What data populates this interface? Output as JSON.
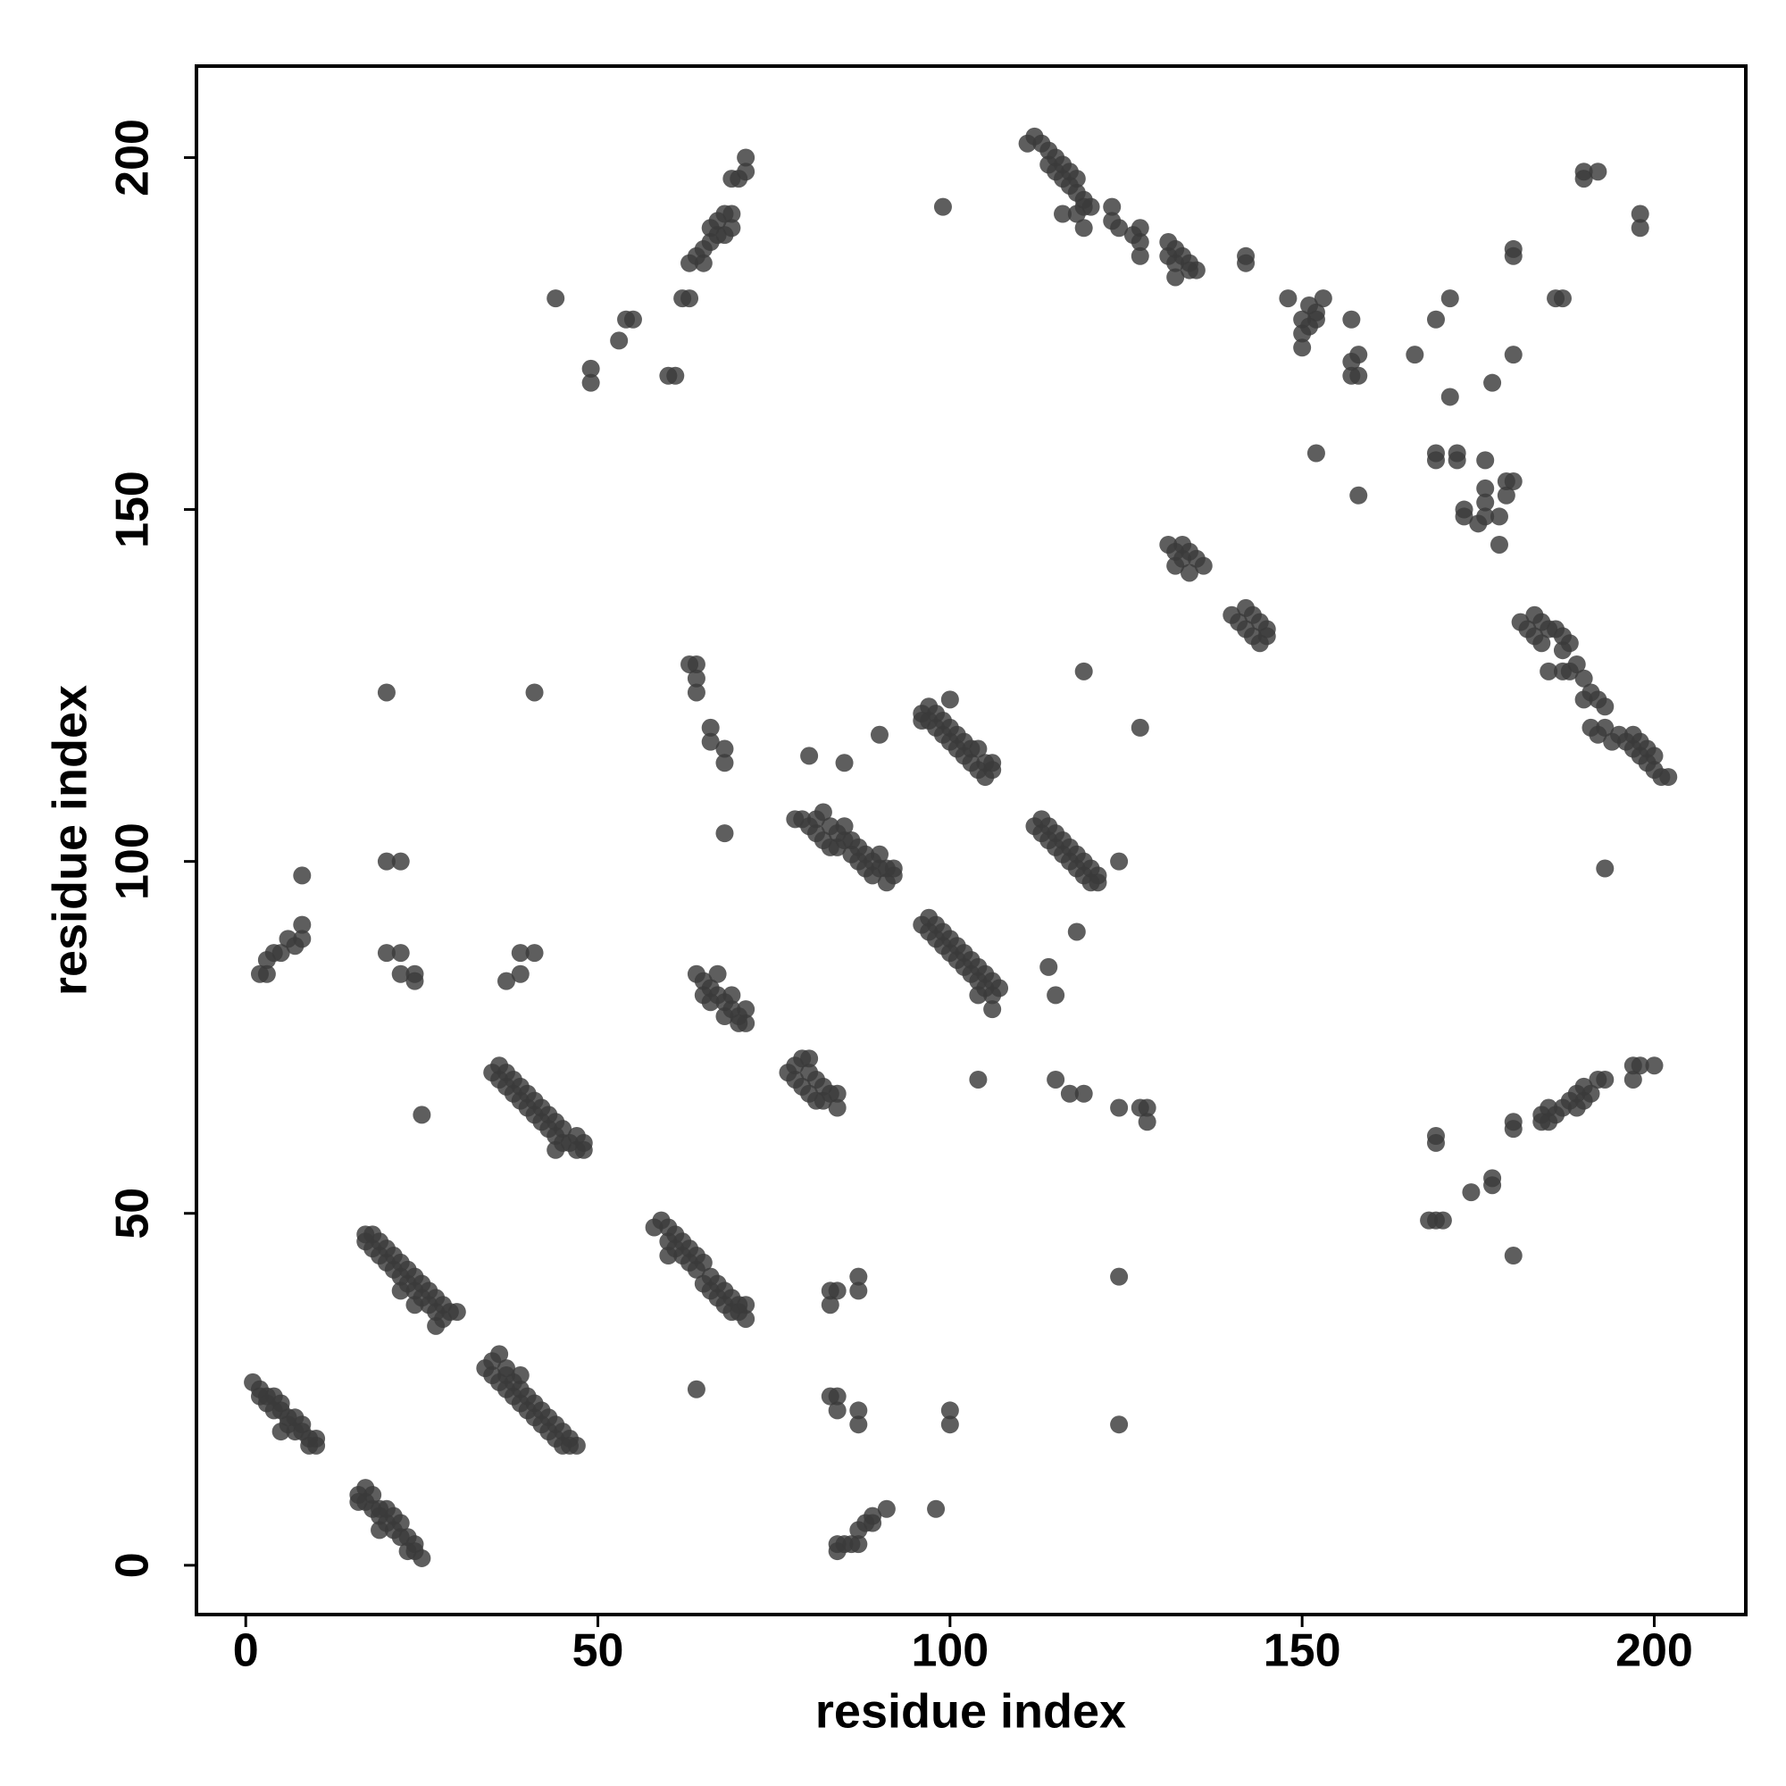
{
  "chart_data": {
    "type": "scatter",
    "x_label": "residue index",
    "y_label": "residue index",
    "color": "#3a3a3a",
    "xlim": [
      -7,
      213
    ],
    "ylim": [
      -7,
      213
    ],
    "xticks": [
      0,
      50,
      100,
      150,
      200
    ],
    "yticks": [
      0,
      50,
      100,
      150,
      200
    ],
    "x": [
      1,
      2,
      3,
      3,
      4,
      5,
      5,
      6,
      6,
      7,
      8,
      8,
      9,
      10,
      10,
      5,
      7,
      9,
      2,
      4,
      16,
      17,
      17,
      18,
      18,
      19,
      19,
      20,
      20,
      21,
      21,
      22,
      22,
      23,
      23,
      24,
      24,
      25,
      19,
      16,
      17,
      17,
      18,
      18,
      19,
      19,
      20,
      20,
      21,
      21,
      22,
      22,
      23,
      23,
      24,
      24,
      25,
      25,
      26,
      26,
      27,
      27,
      28,
      28,
      29,
      30,
      27,
      22,
      24,
      34,
      35,
      35,
      36,
      36,
      37,
      37,
      38,
      38,
      39,
      39,
      40,
      40,
      41,
      41,
      42,
      42,
      43,
      43,
      44,
      44,
      45,
      45,
      46,
      46,
      47,
      37,
      39,
      35,
      36,
      36,
      37,
      37,
      38,
      38,
      39,
      39,
      40,
      40,
      41,
      41,
      42,
      42,
      43,
      43,
      44,
      44,
      45,
      45,
      46,
      47,
      47,
      48,
      44,
      58,
      59,
      60,
      60,
      60,
      61,
      61,
      62,
      62,
      63,
      63,
      64,
      64,
      65,
      65,
      66,
      66,
      67,
      67,
      68,
      68,
      69,
      69,
      70,
      70,
      71,
      71,
      64,
      64,
      65,
      65,
      66,
      66,
      67,
      67,
      68,
      68,
      69,
      69,
      70,
      70,
      71,
      71,
      77,
      78,
      78,
      79,
      79,
      80,
      80,
      81,
      81,
      82,
      82,
      83,
      84,
      84,
      80,
      78,
      79,
      80,
      81,
      81,
      82,
      82,
      83,
      83,
      84,
      84,
      85,
      85,
      86,
      86,
      87,
      87,
      88,
      88,
      89,
      89,
      90,
      90,
      91,
      91,
      92,
      92,
      96,
      97,
      97,
      98,
      98,
      99,
      99,
      100,
      100,
      100,
      101,
      101,
      102,
      102,
      103,
      103,
      104,
      104,
      105,
      105,
      106,
      106,
      96,
      96,
      97,
      97,
      98,
      98,
      99,
      99,
      100,
      100,
      101,
      101,
      102,
      102,
      103,
      103,
      104,
      104,
      105,
      105,
      106,
      106,
      107,
      106,
      104,
      112,
      113,
      113,
      114,
      114,
      115,
      115,
      116,
      116,
      117,
      117,
      118,
      118,
      119,
      119,
      120,
      120,
      121,
      121,
      124,
      111,
      112,
      113,
      114,
      114,
      115,
      115,
      116,
      116,
      117,
      117,
      118,
      118,
      119,
      119,
      120,
      116,
      118,
      119,
      123,
      123,
      124,
      126,
      127,
      127,
      127,
      131,
      131,
      132,
      132,
      133,
      134,
      134,
      132,
      135,
      142,
      142,
      148,
      150,
      150,
      151,
      151,
      152,
      152,
      153,
      150,
      157,
      157,
      158,
      158,
      157,
      131,
      132,
      132,
      133,
      133,
      134,
      134,
      135,
      136,
      140,
      141,
      142,
      142,
      143,
      143,
      144,
      144,
      145,
      145,
      181,
      182,
      183,
      183,
      184,
      184,
      185,
      186,
      187,
      187,
      188,
      188,
      189,
      190,
      190,
      191,
      191,
      192,
      192,
      193,
      193,
      194,
      195,
      196,
      197,
      197,
      198,
      198,
      199,
      199,
      200,
      200,
      201,
      202,
      185,
      187,
      168,
      169,
      170,
      169,
      169,
      174,
      177,
      177,
      180,
      180,
      180,
      184,
      184,
      185,
      186,
      187,
      188,
      189,
      189,
      190,
      190,
      191,
      192,
      193,
      197,
      197,
      198,
      200,
      185,
      44,
      49,
      49,
      53,
      54,
      55,
      60,
      61,
      62,
      63,
      63,
      64,
      65,
      65,
      66,
      66,
      67,
      67,
      68,
      68,
      69,
      69,
      69,
      70,
      71,
      71,
      99,
      166,
      169,
      171,
      171,
      169,
      169,
      172,
      172,
      173,
      173,
      175,
      176,
      176,
      176,
      176,
      177,
      178,
      178,
      179,
      179,
      180,
      180,
      180,
      180,
      186,
      187,
      190,
      190,
      192,
      198,
      198,
      152,
      158,
      193,
      20,
      41,
      63,
      64,
      64,
      64,
      66,
      66,
      68,
      68,
      68,
      80,
      85,
      90,
      119,
      127,
      114,
      115,
      118,
      104,
      115,
      117,
      119,
      124,
      127,
      128,
      128,
      2,
      3,
      3,
      4,
      5,
      6,
      7,
      8,
      8,
      8,
      20,
      22,
      20,
      22,
      22,
      24,
      24,
      37,
      39,
      39,
      41,
      25,
      48,
      83,
      83,
      84,
      87,
      87,
      83,
      84,
      84,
      87,
      87,
      100,
      100,
      124,
      124,
      84,
      84,
      85,
      86,
      87,
      87,
      88,
      89,
      89,
      91,
      98
    ],
    "values": [
      26,
      25,
      24,
      23,
      24,
      23,
      22,
      21,
      20,
      21,
      20,
      19,
      18,
      18,
      17,
      19,
      19,
      17,
      24,
      22,
      10,
      11,
      9,
      10,
      8,
      8,
      7,
      8,
      6,
      7,
      5,
      6,
      4,
      4,
      2,
      3,
      2,
      1,
      5,
      9,
      46,
      47,
      45,
      47,
      44,
      46,
      43,
      45,
      42,
      44,
      41,
      43,
      40,
      42,
      39,
      41,
      38,
      40,
      37,
      39,
      36,
      38,
      35,
      37,
      36,
      36,
      34,
      39,
      37,
      28,
      29,
      27,
      30,
      26,
      27,
      25,
      26,
      24,
      25,
      23,
      24,
      22,
      23,
      21,
      22,
      20,
      21,
      19,
      20,
      18,
      19,
      17,
      18,
      17,
      17,
      28,
      27,
      70,
      71,
      69,
      70,
      68,
      69,
      67,
      68,
      66,
      67,
      65,
      66,
      64,
      65,
      63,
      64,
      62,
      63,
      61,
      62,
      60,
      60,
      61,
      59,
      60,
      59,
      48,
      49,
      48,
      46,
      44,
      45,
      47,
      44,
      46,
      43,
      45,
      42,
      44,
      40,
      43,
      41,
      39,
      40,
      38,
      39,
      37,
      38,
      36,
      36,
      37,
      35,
      37,
      25,
      84,
      83,
      81,
      82,
      80,
      84,
      81,
      80,
      78,
      81,
      79,
      78,
      77,
      79,
      77,
      70,
      71,
      69,
      72,
      68,
      70,
      67,
      69,
      66,
      68,
      66,
      67,
      67,
      65,
      72,
      106,
      106,
      105,
      104,
      106,
      103,
      107,
      102,
      105,
      104,
      102,
      103,
      105,
      101,
      103,
      100,
      102,
      101,
      99,
      100,
      98,
      99,
      101,
      97,
      99,
      98,
      99,
      121,
      120,
      122,
      119,
      121,
      118,
      120,
      117,
      119,
      123,
      116,
      118,
      115,
      117,
      114,
      116,
      113,
      116,
      114,
      112,
      113,
      114,
      120,
      91,
      92,
      90,
      89,
      91,
      88,
      90,
      87,
      89,
      86,
      88,
      85,
      87,
      84,
      86,
      83,
      85,
      82,
      84,
      81,
      83,
      82,
      79,
      81,
      105,
      106,
      104,
      103,
      105,
      102,
      104,
      101,
      103,
      100,
      102,
      99,
      101,
      98,
      100,
      97,
      99,
      98,
      97,
      100,
      202,
      203,
      202,
      201,
      199,
      200,
      198,
      199,
      197,
      196,
      198,
      195,
      197,
      194,
      193,
      193,
      192,
      192,
      190,
      193,
      191,
      190,
      189,
      190,
      188,
      186,
      188,
      186,
      187,
      185,
      186,
      184,
      185,
      183,
      184,
      186,
      185,
      180,
      177,
      175,
      179,
      176,
      178,
      177,
      180,
      173,
      177,
      171,
      172,
      169,
      169,
      145,
      144,
      142,
      145,
      143,
      144,
      141,
      143,
      142,
      135,
      134,
      136,
      133,
      135,
      132,
      134,
      131,
      133,
      132,
      134,
      133,
      135,
      132,
      134,
      131,
      133,
      133,
      132,
      130,
      131,
      127,
      128,
      126,
      123,
      124,
      119,
      123,
      118,
      122,
      119,
      117,
      118,
      117,
      116,
      118,
      115,
      117,
      114,
      116,
      115,
      113,
      112,
      112,
      127,
      127,
      49,
      49,
      49,
      60,
      61,
      53,
      54,
      55,
      62,
      63,
      44,
      63,
      64,
      65,
      64,
      65,
      66,
      67,
      65,
      68,
      66,
      67,
      69,
      69,
      69,
      71,
      71,
      71,
      63,
      180,
      170,
      168,
      174,
      177,
      177,
      169,
      169,
      180,
      180,
      185,
      186,
      185,
      187,
      188,
      190,
      189,
      191,
      189,
      192,
      190,
      192,
      197,
      197,
      198,
      200,
      193,
      172,
      177,
      180,
      166,
      158,
      157,
      158,
      157,
      150,
      149,
      148,
      151,
      149,
      157,
      153,
      168,
      149,
      145,
      152,
      154,
      154,
      172,
      187,
      186,
      180,
      180,
      198,
      197,
      198,
      190,
      192,
      158,
      152,
      99,
      124,
      124,
      128,
      128,
      126,
      124,
      119,
      117,
      116,
      114,
      104,
      115,
      114,
      118,
      127,
      119,
      85,
      81,
      90,
      69,
      69,
      67,
      67,
      65,
      65,
      63,
      65,
      84,
      86,
      84,
      87,
      87,
      89,
      88,
      89,
      98,
      91,
      100,
      100,
      87,
      87,
      84,
      83,
      84,
      83,
      84,
      87,
      87,
      64,
      59,
      39,
      37,
      39,
      41,
      39,
      24,
      24,
      22,
      22,
      20,
      22,
      20,
      41,
      20,
      3,
      2,
      3,
      3,
      5,
      3,
      6,
      7,
      6,
      8,
      8
    ]
  }
}
